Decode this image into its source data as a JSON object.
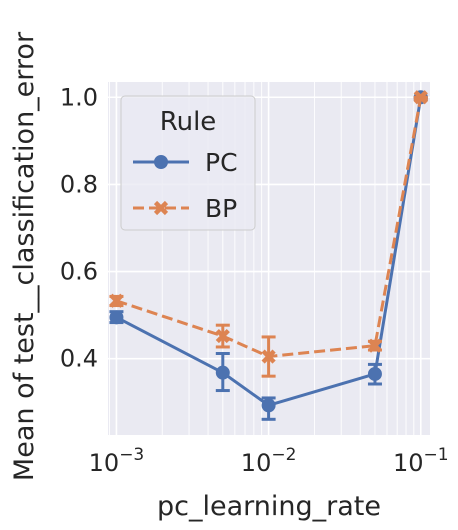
{
  "chart_data": {
    "type": "line",
    "xlabel": "pc_learning_rate",
    "ylabel": "Mean of test__classification_error",
    "xscale": "log",
    "xlim": [
      0.00088,
      0.115
    ],
    "ylim": [
      0.225,
      1.035
    ],
    "x_ticks": [
      {
        "value": 0.001,
        "label": "10−3"
      },
      {
        "value": 0.01,
        "label": "10−2"
      },
      {
        "value": 0.1,
        "label": "10−1"
      }
    ],
    "y_ticks": [
      {
        "value": 0.4,
        "label": "0.4"
      },
      {
        "value": 0.6,
        "label": "0.6"
      },
      {
        "value": 0.8,
        "label": "0.8"
      },
      {
        "value": 1.0,
        "label": "1.0"
      }
    ],
    "grid": true,
    "legend": {
      "title": "Rule",
      "position": "upper-left"
    },
    "series": [
      {
        "name": "PC",
        "color": "#4c72b0",
        "marker": "circle",
        "linestyle": "solid",
        "x": [
          0.001,
          0.005,
          0.01,
          0.05,
          0.1
        ],
        "y": [
          0.495,
          0.368,
          0.293,
          0.365,
          1.0
        ],
        "err_low": [
          0.483,
          0.327,
          0.261,
          0.342,
          0.995
        ],
        "err_high": [
          0.508,
          0.412,
          0.31,
          0.387,
          1.0
        ]
      },
      {
        "name": "BP",
        "color": "#dd8452",
        "marker": "x",
        "linestyle": "dashed",
        "x": [
          0.001,
          0.005,
          0.01,
          0.05,
          0.1
        ],
        "y": [
          0.533,
          0.452,
          0.405,
          0.43,
          1.0
        ],
        "err_low": [
          0.522,
          0.427,
          0.36,
          0.42,
          0.995
        ],
        "err_high": [
          0.543,
          0.477,
          0.45,
          0.44,
          1.0
        ]
      }
    ]
  }
}
